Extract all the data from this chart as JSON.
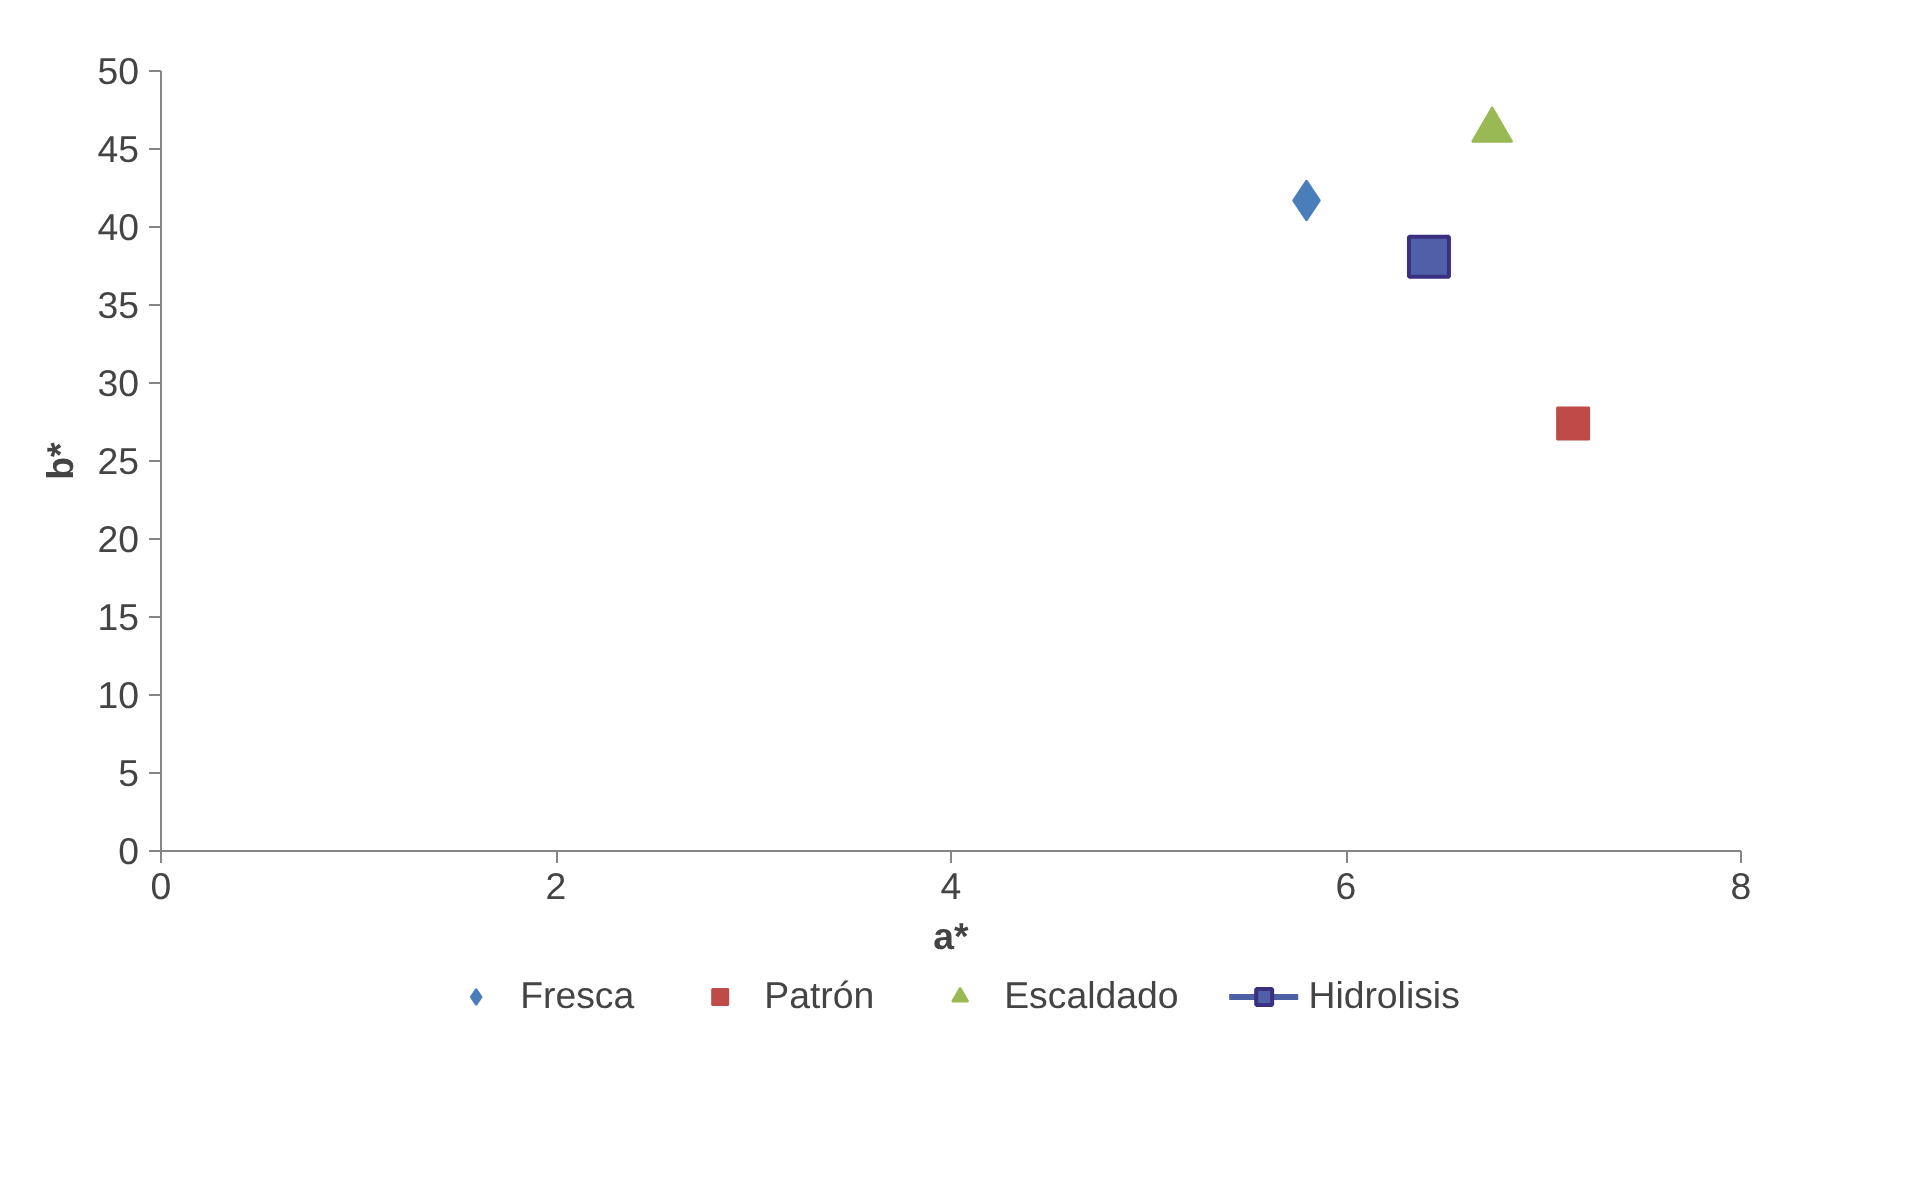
{
  "chart_data": {
    "type": "scatter",
    "xlabel": "a*",
    "ylabel": "b*",
    "xlim": [
      0,
      8
    ],
    "ylim": [
      0,
      50
    ],
    "xticks": [
      0,
      2,
      4,
      6,
      8
    ],
    "yticks": [
      0,
      5,
      10,
      15,
      20,
      25,
      30,
      35,
      40,
      45,
      50
    ],
    "grid": false,
    "legend": "bottom",
    "series": [
      {
        "name": "Fresca",
        "color": "#4a7ebb",
        "marker": "diamond",
        "x": [
          5.8
        ],
        "values": [
          41.7
        ]
      },
      {
        "name": "Patrón",
        "color": "#be4b48",
        "marker": "square",
        "x": [
          7.15
        ],
        "values": [
          27.4
        ]
      },
      {
        "name": "Escaldado",
        "color": "#98b954",
        "marker": "triangle",
        "x": [
          6.74
        ],
        "values": [
          46.2
        ]
      },
      {
        "name": "Hidrolisis",
        "color": "#4f5fa8",
        "type": "line",
        "marker": "square",
        "x": [
          6.42
        ],
        "values": [
          38.1
        ]
      }
    ]
  }
}
